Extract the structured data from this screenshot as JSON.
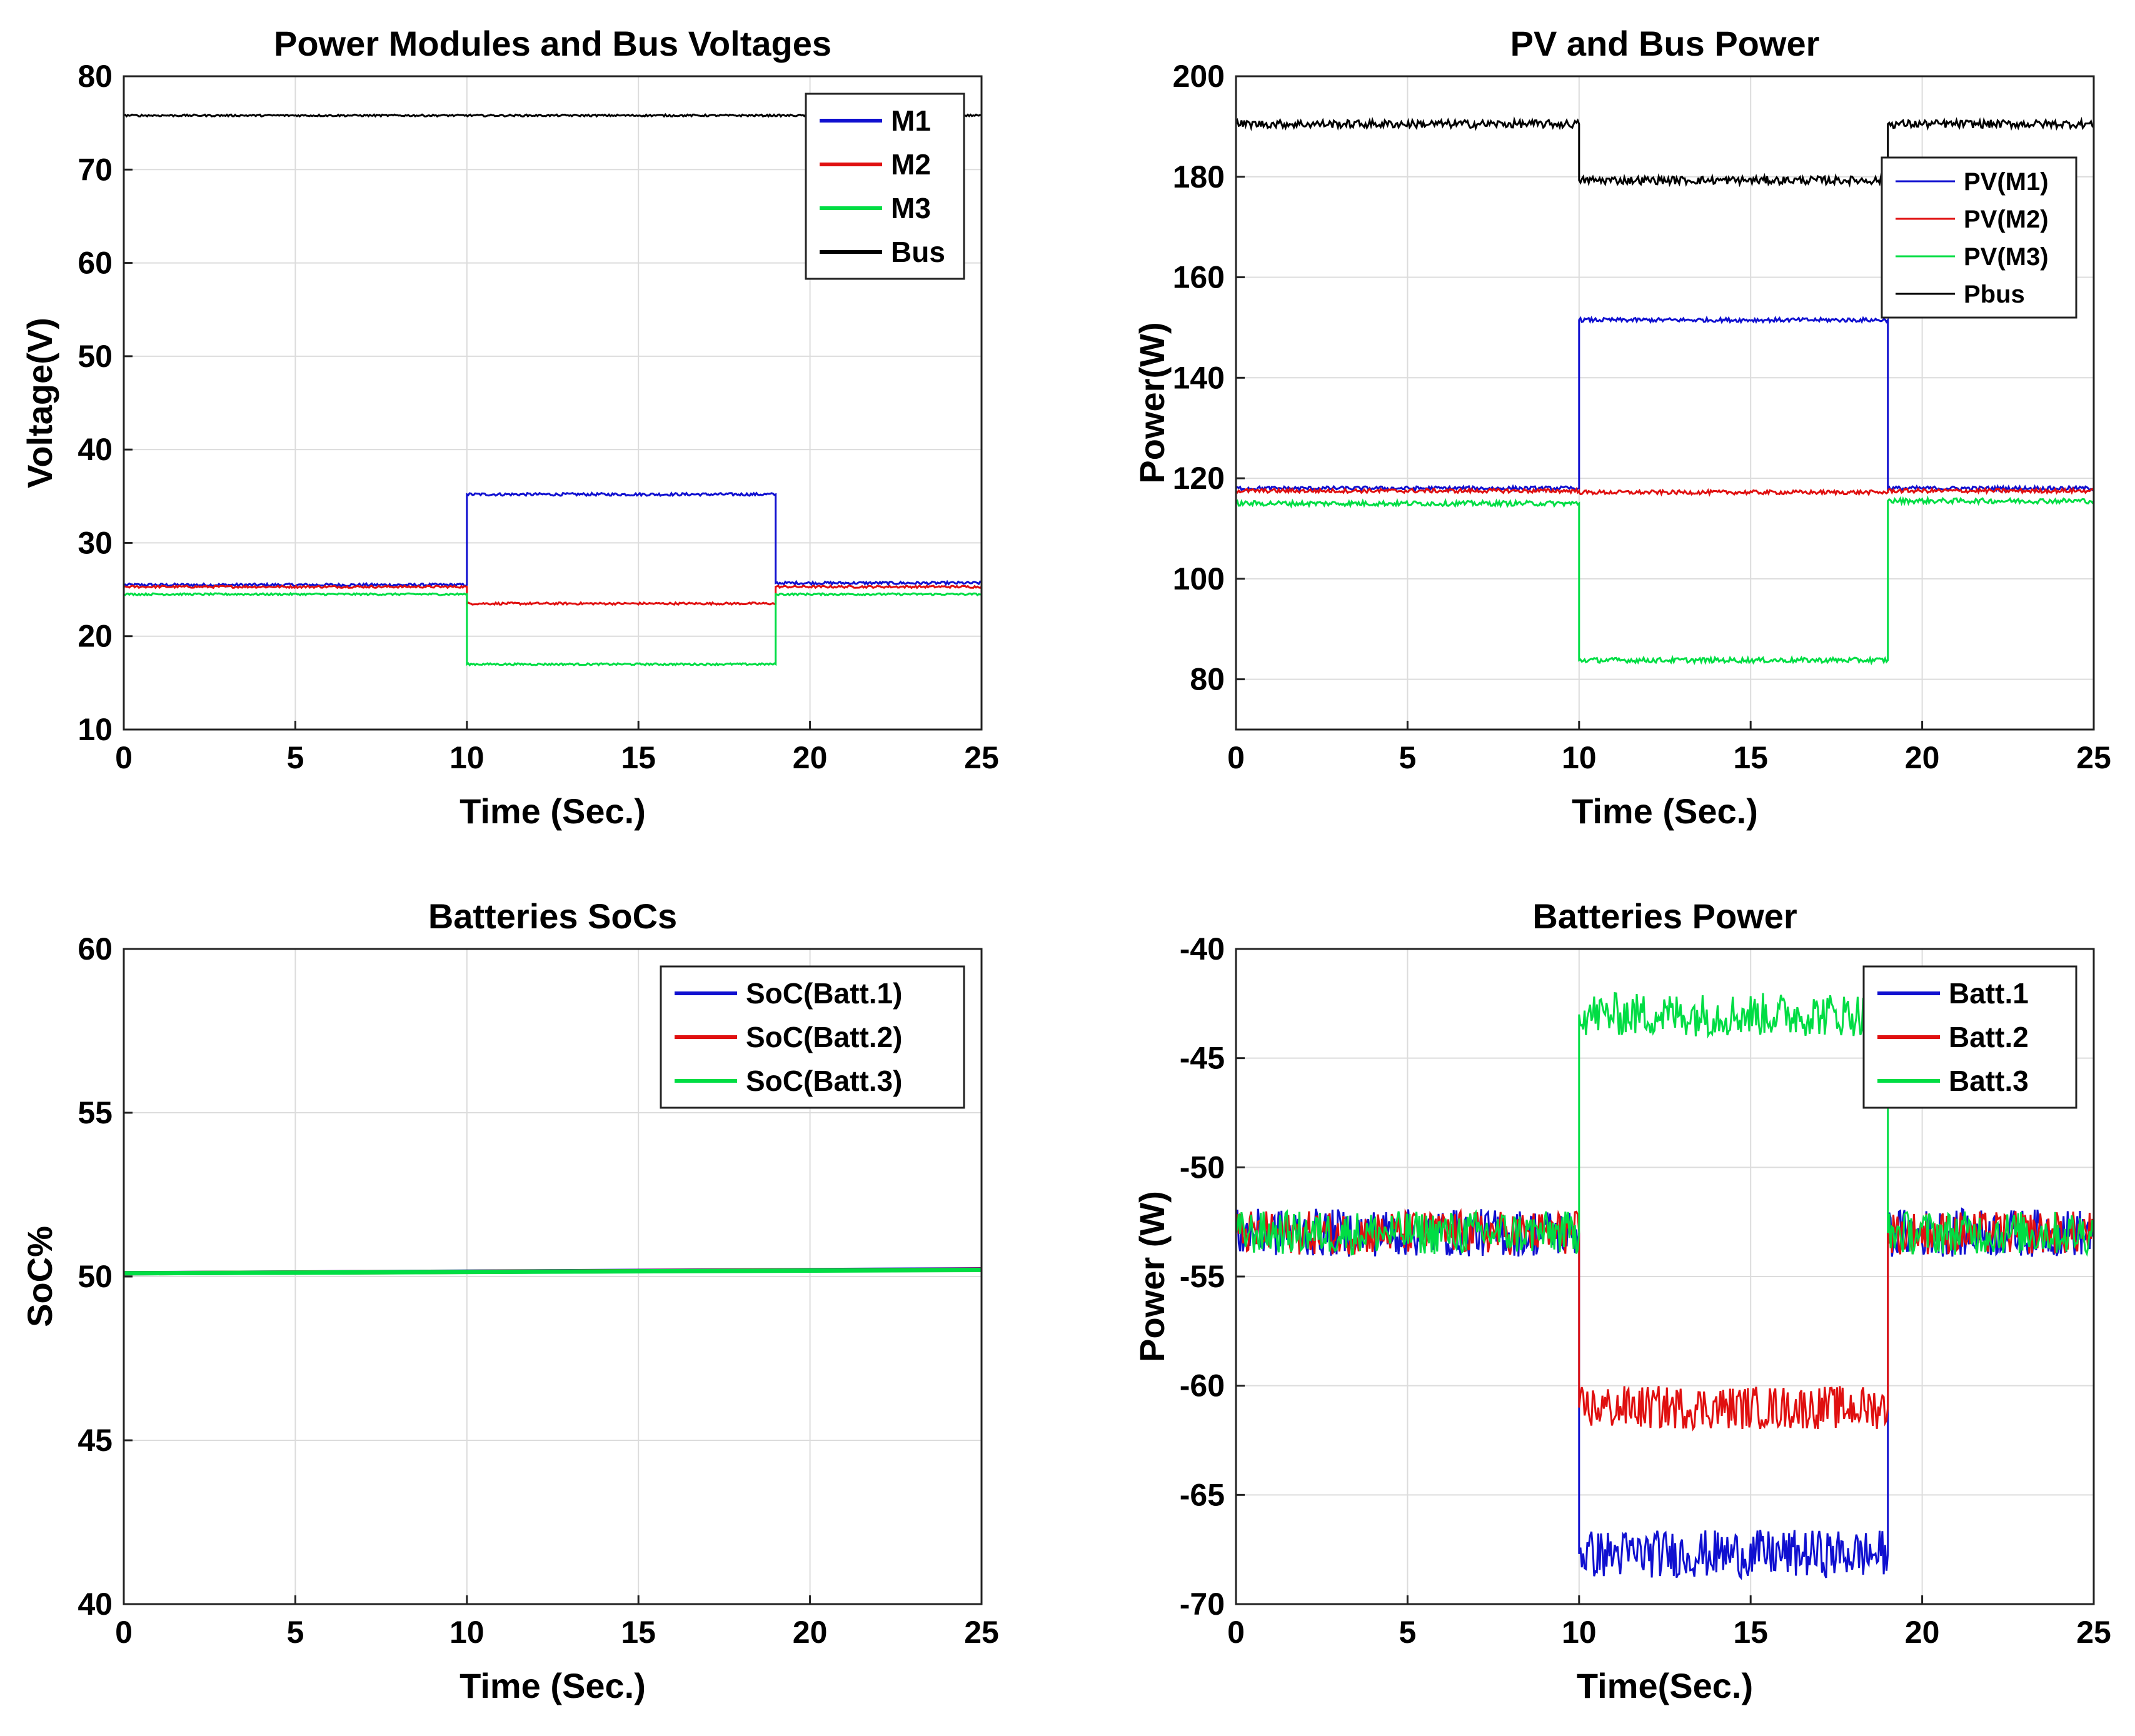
{
  "figure": {
    "description_label": "Four-panel simulation results"
  },
  "chart_data": [
    {
      "id": "voltages",
      "type": "line",
      "title": "Power Modules and Bus Voltages",
      "xlabel": "Time (Sec.)",
      "ylabel": "Voltage(V)",
      "xlim": [
        0,
        25
      ],
      "ylim": [
        10,
        80
      ],
      "xticks": [
        0,
        5,
        10,
        15,
        20,
        25
      ],
      "yticks": [
        10,
        20,
        30,
        40,
        50,
        60,
        70,
        80
      ],
      "grid": true,
      "legend": "top-right",
      "legend_size": "large",
      "series": [
        {
          "name": "M1",
          "color": "#1010d0",
          "noise": 0.15,
          "points": [
            [
              0,
              25.5
            ],
            [
              10,
              25.5
            ],
            [
              10,
              35.2
            ],
            [
              19,
              35.2
            ],
            [
              19,
              25.7
            ],
            [
              25,
              25.7
            ]
          ]
        },
        {
          "name": "M2",
          "color": "#e01010",
          "noise": 0.12,
          "points": [
            [
              0,
              25.3
            ],
            [
              10,
              25.3
            ],
            [
              10,
              23.5
            ],
            [
              19,
              23.5
            ],
            [
              19,
              25.3
            ],
            [
              25,
              25.3
            ]
          ]
        },
        {
          "name": "M3",
          "color": "#00dd44",
          "noise": 0.1,
          "points": [
            [
              0,
              24.5
            ],
            [
              10,
              24.5
            ],
            [
              10,
              17.0
            ],
            [
              19,
              17.0
            ],
            [
              19,
              24.5
            ],
            [
              25,
              24.5
            ]
          ]
        },
        {
          "name": "Bus",
          "color": "#000000",
          "noise": 0.1,
          "points": [
            [
              0,
              75.8
            ],
            [
              25,
              75.8
            ]
          ]
        }
      ]
    },
    {
      "id": "pv_power",
      "type": "line",
      "title": "PV and Bus Power",
      "xlabel": "Time (Sec.)",
      "ylabel": "Power(W)",
      "xlim": [
        0,
        25
      ],
      "ylim": [
        70,
        200
      ],
      "xticks": [
        0,
        5,
        10,
        15,
        20,
        25
      ],
      "yticks": [
        80,
        100,
        120,
        140,
        160,
        180,
        200
      ],
      "grid": true,
      "legend": "top-right",
      "legend_size": "small",
      "series": [
        {
          "name": "PV(M1)",
          "color": "#1010d0",
          "noise": 0.4,
          "points": [
            [
              0,
              118
            ],
            [
              10,
              118
            ],
            [
              10,
              151.5
            ],
            [
              19,
              151.5
            ],
            [
              19,
              118
            ],
            [
              25,
              118
            ]
          ]
        },
        {
          "name": "PV(M2)",
          "color": "#e01010",
          "noise": 0.4,
          "points": [
            [
              0,
              117.5
            ],
            [
              10,
              117.5
            ],
            [
              10,
              117.2
            ],
            [
              19,
              117.2
            ],
            [
              19,
              117.5
            ],
            [
              25,
              117.5
            ]
          ]
        },
        {
          "name": "PV(M3)",
          "color": "#00dd44",
          "noise": 0.5,
          "points": [
            [
              0,
              115
            ],
            [
              10,
              115
            ],
            [
              10,
              83.8
            ],
            [
              19,
              83.8
            ],
            [
              19,
              115.5
            ],
            [
              25,
              115.5
            ]
          ]
        },
        {
          "name": "Pbus",
          "color": "#000000",
          "noise": 0.8,
          "points": [
            [
              0,
              190.5
            ],
            [
              10,
              190.5
            ],
            [
              10,
              179.3
            ],
            [
              19,
              179.3
            ],
            [
              19,
              190.5
            ],
            [
              25,
              190.5
            ]
          ]
        }
      ]
    },
    {
      "id": "soc",
      "type": "line",
      "title": "Batteries SoCs",
      "xlabel": "Time (Sec.)",
      "ylabel": "SoC%",
      "xlim": [
        0,
        25
      ],
      "ylim": [
        40,
        60
      ],
      "xticks": [
        0,
        5,
        10,
        15,
        20,
        25
      ],
      "yticks": [
        40,
        45,
        50,
        55,
        60
      ],
      "grid": true,
      "legend": "top-right",
      "legend_size": "large",
      "series": [
        {
          "name": "SoC(Batt.1)",
          "color": "#1010d0",
          "noise": 0,
          "points": [
            [
              0,
              50.1
            ],
            [
              25,
              50.22
            ]
          ]
        },
        {
          "name": "SoC(Batt.2)",
          "color": "#e01010",
          "noise": 0,
          "points": [
            [
              0,
              50.1
            ],
            [
              25,
              50.21
            ]
          ]
        },
        {
          "name": "SoC(Batt.3)",
          "color": "#00dd44",
          "noise": 0,
          "points": [
            [
              0,
              50.1
            ],
            [
              25,
              50.2
            ]
          ]
        }
      ]
    },
    {
      "id": "batt_power",
      "type": "line",
      "title": "Batteries Power",
      "xlabel": "Time(Sec.)",
      "ylabel": "Power (W)",
      "xlim": [
        0,
        25
      ],
      "ylim": [
        -70,
        -40
      ],
      "xticks": [
        0,
        5,
        10,
        15,
        20,
        25
      ],
      "yticks": [
        -70,
        -65,
        -60,
        -55,
        -50,
        -45,
        -40
      ],
      "grid": true,
      "legend": "top-right",
      "legend_size": "large",
      "series": [
        {
          "name": "Batt.1",
          "color": "#1010d0",
          "noise": 1.1,
          "points": [
            [
              0,
              -53
            ],
            [
              10,
              -53
            ],
            [
              10,
              -67.7
            ],
            [
              19,
              -67.7
            ],
            [
              19,
              -53
            ],
            [
              25,
              -53
            ]
          ]
        },
        {
          "name": "Batt.2",
          "color": "#e01010",
          "noise": 1.0,
          "points": [
            [
              0,
              -53
            ],
            [
              10,
              -53
            ],
            [
              10,
              -61
            ],
            [
              19,
              -61
            ],
            [
              19,
              -53
            ],
            [
              25,
              -53
            ]
          ]
        },
        {
          "name": "Batt.3",
          "color": "#00dd44",
          "noise": 1.0,
          "points": [
            [
              0,
              -53
            ],
            [
              10,
              -53
            ],
            [
              10,
              -43
            ],
            [
              19,
              -43
            ],
            [
              19,
              -53
            ],
            [
              25,
              -53
            ]
          ]
        }
      ]
    }
  ]
}
